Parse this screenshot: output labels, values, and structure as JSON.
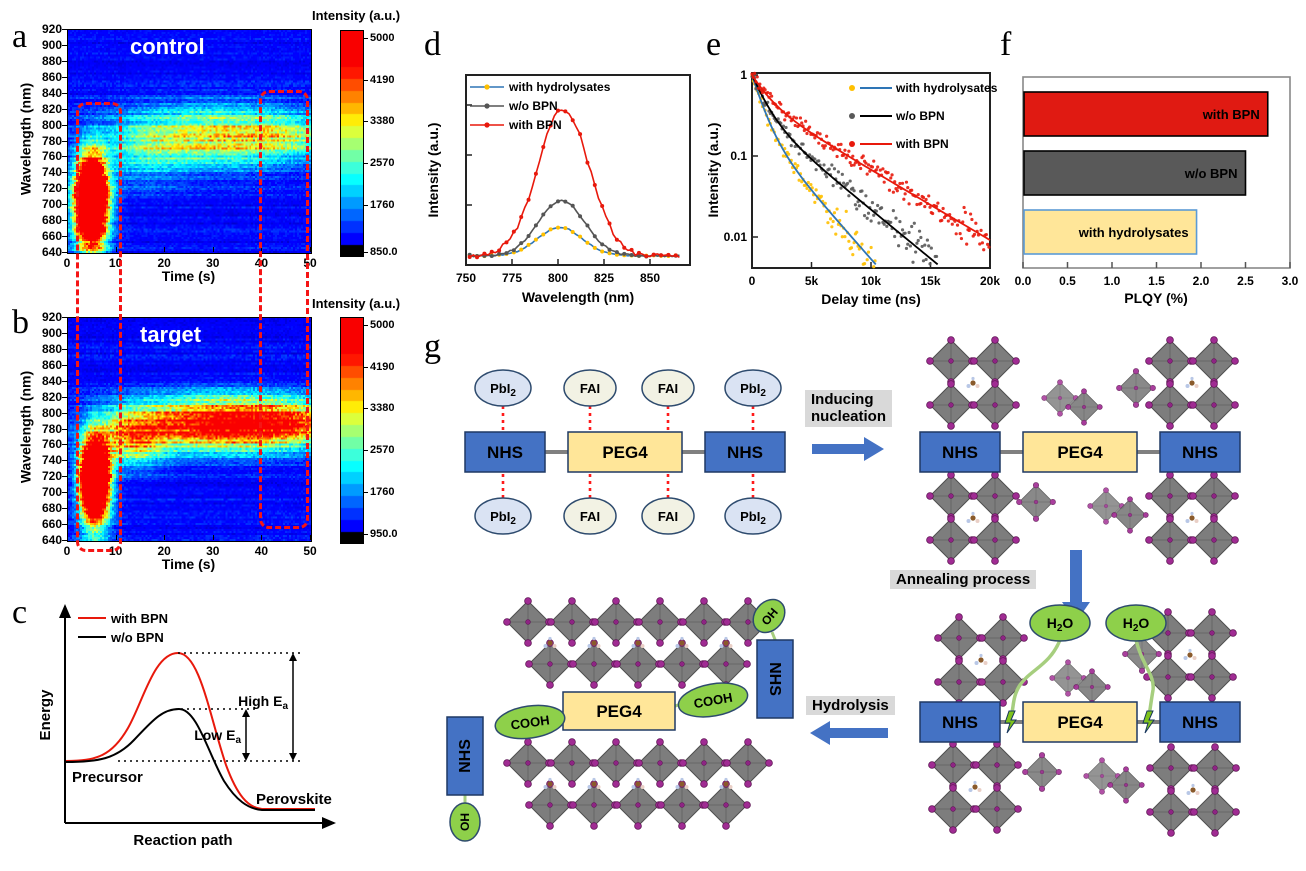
{
  "panels": {
    "a": {
      "letter": "a",
      "title": "control",
      "xlabel": "Time (s)",
      "ylabel": "Wavelength (nm)",
      "cb_title": "Intensity (a.u.)"
    },
    "b": {
      "letter": "b",
      "title": "target",
      "xlabel": "Time (s)",
      "ylabel": "Wavelength (nm)",
      "cb_title": "Intensity (a.u.)"
    },
    "c": {
      "letter": "c",
      "legend_with": "with BPN",
      "legend_wo": "w/o BPN",
      "ylabel": "Energy",
      "xlabel": "Reaction path",
      "high": "High E",
      "low": "Low E",
      "sub": "a",
      "precursor": "Precursor",
      "perovskite": "Perovskite"
    },
    "d": {
      "letter": "d",
      "xlabel": "Wavelength (nm)",
      "ylabel": "Intensity (a.u.)"
    },
    "e": {
      "letter": "e",
      "xlabel": "Delay time (ns)",
      "ylabel": "Intensity (a.u.)"
    },
    "f": {
      "letter": "f",
      "xlabel": "PLQY (%)"
    },
    "g": {
      "letter": "g",
      "nhs": "NHS",
      "peg4": "PEG4",
      "pbi2_1": "PbI",
      "pbi2_2": "2",
      "fai": "FAI",
      "h2o_1": "H",
      "h2o_2": "2",
      "h2o_3": "O",
      "cooh": "COOH",
      "oh": "OH",
      "inducing_1": "Inducing",
      "inducing_2": "nucleation",
      "annealing": "Annealing process",
      "hydrolysis": "Hydrolysis"
    }
  },
  "chart_data": [
    {
      "panel": "a",
      "type": "heatmap",
      "title": "control",
      "xlabel": "Time (s)",
      "ylabel": "Wavelength (nm)",
      "x_range": [
        0,
        50
      ],
      "y_range": [
        640,
        920
      ],
      "x_ticks": [
        0,
        10,
        20,
        30,
        40,
        50
      ],
      "y_ticks": [
        920,
        900,
        880,
        860,
        840,
        820,
        800,
        780,
        760,
        740,
        720,
        700,
        680,
        660,
        640
      ],
      "colorbar": {
        "title": "Intensity (a.u.)",
        "tick_labels": [
          "5000",
          "4190",
          "3380",
          "2570",
          "1760",
          "850.0"
        ],
        "tick_values": [
          5000,
          4190,
          3380,
          2570,
          1760,
          850
        ],
        "vtop": 5150,
        "vbot": 790,
        "black_below": 930
      },
      "base": 1120,
      "seed": 11,
      "features": [
        {
          "desc": "nucleation burst",
          "t": 4.6,
          "wl": 710,
          "st": 2.1,
          "sw": 33,
          "amp": 8800
        },
        {
          "desc": "burst halo",
          "t": 4.6,
          "wl": 672,
          "st": 2.6,
          "sw": 52,
          "amp": 1400
        },
        {
          "desc": "growth band",
          "t": 31,
          "wl": 787,
          "st": 14,
          "sw": 26,
          "amp": 2350
        },
        {
          "desc": "late hot spots",
          "t": 46,
          "wl": 789,
          "st": 7,
          "sw": 15,
          "amp": 800
        },
        {
          "desc": "band onset",
          "t": 15,
          "wl": 765,
          "st": 6,
          "sw": 30,
          "amp": 700
        }
      ],
      "annotations": [
        "red dashed box t≈2–10 s",
        "red dashed box t≈40–48 s"
      ]
    },
    {
      "panel": "b",
      "type": "heatmap",
      "title": "target",
      "xlabel": "Time (s)",
      "ylabel": "Wavelength (nm)",
      "x_range": [
        0,
        50
      ],
      "y_range": [
        640,
        920
      ],
      "x_ticks": [
        0,
        10,
        20,
        30,
        40,
        50
      ],
      "y_ticks": [
        920,
        900,
        880,
        860,
        840,
        820,
        800,
        780,
        760,
        740,
        720,
        700,
        680,
        660,
        640
      ],
      "colorbar": {
        "title": "Intensity (a.u.)",
        "tick_labels": [
          "5000",
          "4190",
          "3380",
          "2570",
          "1760",
          "950.0"
        ],
        "tick_values": [
          5000,
          4190,
          3380,
          2570,
          1760,
          950
        ],
        "vtop": 5150,
        "vbot": 790,
        "black_below": 1010
      },
      "base": 1120,
      "seed": 29,
      "features": [
        {
          "desc": "nucleation burst",
          "t": 5.3,
          "wl": 720,
          "st": 1.8,
          "sw": 29,
          "amp": 9500
        },
        {
          "desc": "burst halo",
          "t": 5.3,
          "wl": 695,
          "st": 2.3,
          "sw": 48,
          "amp": 1500
        },
        {
          "desc": "growth band (intense)",
          "t": 33,
          "wl": 789,
          "st": 14,
          "sw": 22,
          "amp": 4300
        },
        {
          "desc": "band onset",
          "t": 13,
          "wl": 770,
          "st": 5,
          "sw": 24,
          "amp": 2000
        },
        {
          "desc": "late hot spots",
          "t": 47,
          "wl": 791,
          "st": 6,
          "sw": 17,
          "amp": 1000
        }
      ],
      "annotations": [
        "red dashed box t≈2–10 s",
        "red dashed box t≈40–48 s"
      ]
    },
    {
      "panel": "c",
      "type": "schematic",
      "xlabel": "Reaction path",
      "ylabel": "Energy",
      "legend": [
        "with BPN",
        "w/o BPN"
      ],
      "legend_colors": [
        "#e8190c",
        "#000000"
      ],
      "labels": [
        "High Ea",
        "Low Ea",
        "Precursor",
        "Perovskite"
      ],
      "description": "activation-energy diagram: red (with BPN) barrier higher than black (w/o BPN)"
    },
    {
      "panel": "d",
      "type": "line",
      "xlabel": "Wavelength (nm)",
      "ylabel": "Intensity (a.u.)",
      "x_ticks": [
        750,
        775,
        800,
        825,
        850
      ],
      "x_range": [
        750,
        868
      ],
      "peak_nm": 802,
      "series": [
        {
          "name": "with hydrolysates",
          "line": "#2E75B6",
          "marker": "#FFC000",
          "center": 801,
          "sigma": 12,
          "rel_amp": 0.19
        },
        {
          "name": "w/o BPN",
          "line": "#555555",
          "marker": "#555555",
          "center": 802,
          "sigma": 12.5,
          "rel_amp": 0.37
        },
        {
          "name": "with BPN",
          "line": "#e8190c",
          "marker": "#e8190c",
          "center": 803,
          "sigma": 14,
          "rel_amp": 0.98
        }
      ]
    },
    {
      "panel": "e",
      "type": "scatter-line",
      "y_scale": "log",
      "xlabel": "Delay time (ns)",
      "ylabel": "Intensity (a.u.)",
      "x_tick_labels": [
        "0",
        "5k",
        "10k",
        "15k",
        "20k"
      ],
      "x_range": [
        0,
        20000
      ],
      "y_tick_labels": [
        "1",
        "0.1",
        "0.01"
      ],
      "y_range": [
        0.0042,
        1
      ],
      "series": [
        {
          "name": "with hydrolysates",
          "marker": "#FFC000",
          "line": "#2E75B6",
          "A1": 0.75,
          "tau1": 800,
          "A2": 0.25,
          "tau2": 2600,
          "tmax": 10500
        },
        {
          "name": "w/o BPN",
          "marker": "#595959",
          "line": "#000000",
          "A1": 0.65,
          "tau1": 1000,
          "A2": 0.35,
          "tau2": 3600,
          "tmax": 20000
        },
        {
          "name": "with BPN",
          "marker": "#e8190c",
          "line": "#e8190c",
          "A1": 0.5,
          "tau1": 1200,
          "A2": 0.5,
          "tau2": 5000,
          "tmax": 20000
        }
      ]
    },
    {
      "panel": "f",
      "type": "bar",
      "orientation": "horizontal",
      "categories": [
        "with BPN",
        "w/o BPN",
        "with hydrolysates"
      ],
      "values": [
        2.75,
        2.5,
        1.95
      ],
      "colors": [
        "#e01a12",
        "#595959",
        "#ffe699"
      ],
      "borders": [
        "#000000",
        "#000000",
        "#5B9BD5"
      ],
      "xlabel": "PLQY (%)",
      "xlim": [
        0,
        3
      ],
      "x_tick_labels": [
        "0.0",
        "0.5",
        "1.0",
        "1.5",
        "2.0",
        "2.5",
        "3.0"
      ]
    }
  ]
}
